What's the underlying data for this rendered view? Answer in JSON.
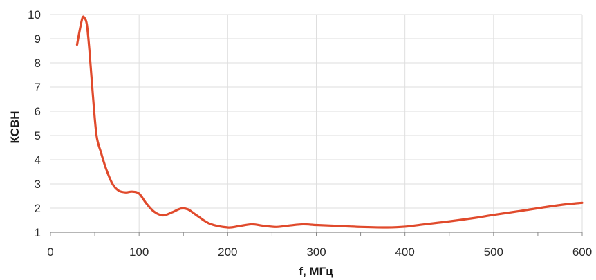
{
  "chart_data": {
    "type": "line",
    "title": "",
    "xlabel": "f, МГц",
    "ylabel": "КСВН",
    "xlim": [
      0,
      600
    ],
    "ylim": [
      1,
      10
    ],
    "x_ticks": [
      0,
      100,
      200,
      300,
      400,
      500,
      600
    ],
    "y_ticks": [
      1,
      2,
      3,
      4,
      5,
      6,
      7,
      8,
      9,
      10
    ],
    "grid": true,
    "legend": "none",
    "series": [
      {
        "color": "#e04a2c",
        "x": [
          30,
          33,
          36,
          38,
          41,
          44,
          48,
          52,
          57,
          63,
          70,
          77,
          85,
          92,
          100,
          108,
          117,
          127,
          137,
          147,
          155,
          165,
          180,
          200,
          212,
          227,
          240,
          255,
          270,
          285,
          300,
          320,
          350,
          380,
          400,
          420,
          450,
          480,
          500,
          530,
          560,
          580,
          600
        ],
        "y": [
          8.75,
          9.35,
          9.85,
          9.88,
          9.6,
          8.5,
          6.6,
          5.0,
          4.3,
          3.6,
          3.0,
          2.72,
          2.65,
          2.68,
          2.6,
          2.2,
          1.85,
          1.7,
          1.82,
          1.98,
          1.95,
          1.7,
          1.35,
          1.2,
          1.25,
          1.33,
          1.27,
          1.22,
          1.28,
          1.33,
          1.3,
          1.27,
          1.22,
          1.2,
          1.23,
          1.32,
          1.45,
          1.6,
          1.72,
          1.88,
          2.05,
          2.15,
          2.22
        ]
      }
    ]
  }
}
